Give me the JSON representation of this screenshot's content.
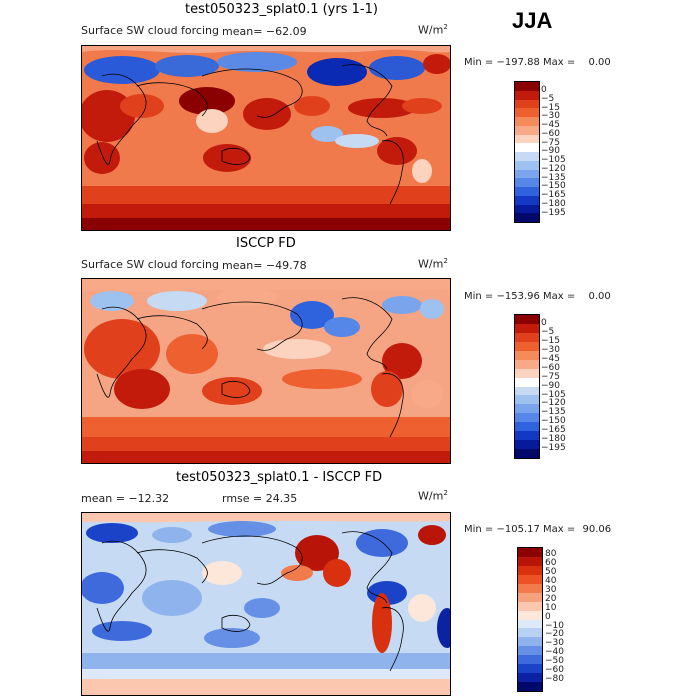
{
  "season": "JJA",
  "panels": [
    {
      "title": "test050323_splat0.1 (yrs 1-1)",
      "subtitle": "Surface SW cloud forcing",
      "mean_text": "mean= −62.09",
      "units": "W/m",
      "units_exp": "2",
      "min_label": "Min = ",
      "min_value": "−197.88",
      "max_label": "Max = ",
      "max_value": "0.00",
      "colorbar_labels": [
        "0",
        "−5",
        "−15",
        "−30",
        "−45",
        "−60",
        "−75",
        "−90",
        "−105",
        "−120",
        "−135",
        "−150",
        "−165",
        "−180",
        "−195"
      ],
      "colorbar_colors": [
        "#8b0000",
        "#c21b0c",
        "#e0401c",
        "#ef6030",
        "#f58a5a",
        "#f8aa88",
        "#fbd3bf",
        "#ffffff",
        "#c6dbf3",
        "#9ec2ef",
        "#7aa5ec",
        "#5587e8",
        "#2f62dd",
        "#1238c4",
        "#061a9c",
        "#00096a"
      ]
    },
    {
      "title": "ISCCP FD",
      "subtitle": "Surface SW cloud forcing",
      "mean_text": "mean= −49.78",
      "units": "W/m",
      "units_exp": "2",
      "min_label": "Min = ",
      "min_value": "−153.96",
      "max_label": "Max = ",
      "max_value": "0.00",
      "colorbar_labels": [
        "0",
        "−5",
        "−15",
        "−30",
        "−45",
        "−60",
        "−75",
        "−90",
        "−105",
        "−120",
        "−135",
        "−150",
        "−165",
        "−180",
        "−195"
      ],
      "colorbar_colors": [
        "#8b0000",
        "#c21b0c",
        "#e0401c",
        "#ef6030",
        "#f58a5a",
        "#f8aa88",
        "#fbd3bf",
        "#ffffff",
        "#c6dbf3",
        "#9ec2ef",
        "#7aa5ec",
        "#5587e8",
        "#2f62dd",
        "#1238c4",
        "#061a9c",
        "#00096a"
      ]
    },
    {
      "title": "test050323_splat0.1 - ISCCP FD",
      "mean_text": "mean = −12.32",
      "rmse_text": "rmse =  24.35",
      "units": "W/m",
      "units_exp": "2",
      "min_label": "Min = ",
      "min_value": "−105.17",
      "max_label": "Max = ",
      "max_value": "90.06",
      "colorbar_labels": [
        "80",
        "60",
        "50",
        "40",
        "30",
        "20",
        "10",
        "0",
        "−10",
        "−20",
        "−30",
        "−40",
        "−50",
        "−60",
        "−80"
      ],
      "colorbar_colors": [
        "#8b0000",
        "#b81508",
        "#d9300f",
        "#ec5224",
        "#f27b4c",
        "#f7a27f",
        "#fbc7ae",
        "#fde6da",
        "#dde9f8",
        "#b8d0f2",
        "#8fb3ec",
        "#6690e6",
        "#3f6adb",
        "#1b43c8",
        "#0b23a3",
        "#00096a"
      ]
    }
  ]
}
